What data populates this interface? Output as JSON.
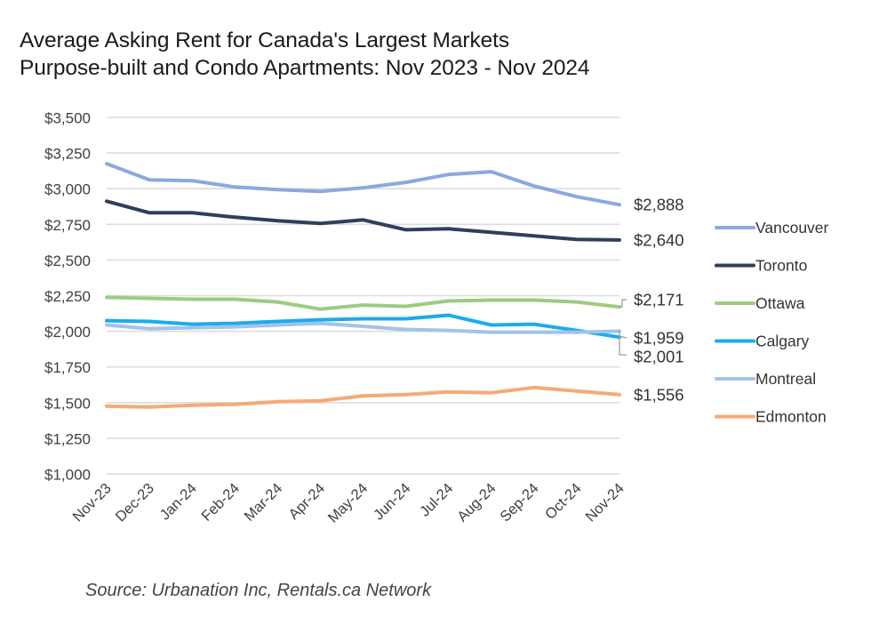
{
  "chart_data": {
    "type": "line",
    "title": "Average Asking Rent for Canada's Largest Markets",
    "subtitle": "Purpose-built and Condo Apartments: Nov 2023 - Nov 2024",
    "xlabel": "",
    "ylabel": "",
    "ylim": [
      1000,
      3500
    ],
    "y_ticks": [
      1000,
      1250,
      1500,
      1750,
      2000,
      2250,
      2500,
      2750,
      3000,
      3250,
      3500
    ],
    "y_tick_labels": [
      "$1,000",
      "$1,250",
      "$1,500",
      "$1,750",
      "$2,000",
      "$2,250",
      "$2,500",
      "$2,750",
      "$3,000",
      "$3,250",
      "$3,500"
    ],
    "grid": true,
    "legend_position": "right",
    "categories": [
      "Nov-23",
      "Dec-23",
      "Jan-24",
      "Feb-24",
      "Mar-24",
      "Apr-24",
      "May-24",
      "Jun-24",
      "Jul-24",
      "Aug-24",
      "Sep-24",
      "Oct-24",
      "Nov-24"
    ],
    "series": [
      {
        "name": "Vancouver",
        "color": "#8ba8e0",
        "end_label": "$2,888",
        "values": [
          3175,
          3062,
          3056,
          3012,
          2994,
          2981,
          3006,
          3044,
          3100,
          3119,
          3019,
          2944,
          2888
        ]
      },
      {
        "name": "Toronto",
        "color": "#2e3f5a",
        "end_label": "$2,640",
        "values": [
          2912,
          2831,
          2831,
          2800,
          2775,
          2756,
          2781,
          2712,
          2719,
          2694,
          2669,
          2644,
          2640
        ]
      },
      {
        "name": "Ottawa",
        "color": "#9dcb82",
        "end_label": "$2,171",
        "values": [
          2238,
          2231,
          2225,
          2225,
          2206,
          2156,
          2184,
          2175,
          2213,
          2219,
          2219,
          2206,
          2171
        ]
      },
      {
        "name": "Calgary",
        "color": "#1aacec",
        "end_label": "$1,959",
        "values": [
          2075,
          2069,
          2050,
          2056,
          2069,
          2081,
          2088,
          2088,
          2113,
          2044,
          2050,
          2006,
          1959
        ]
      },
      {
        "name": "Montreal",
        "color": "#a4c2e8",
        "end_label": "$2,001",
        "values": [
          2044,
          2019,
          2025,
          2031,
          2044,
          2056,
          2035,
          2013,
          2006,
          1994,
          1994,
          1994,
          2001
        ]
      },
      {
        "name": "Edmonton",
        "color": "#f4aa78",
        "end_label": "$1,556",
        "values": [
          1475,
          1469,
          1481,
          1488,
          1506,
          1513,
          1547,
          1556,
          1575,
          1569,
          1606,
          1581,
          1556
        ]
      }
    ],
    "source": "Source: Urbanation Inc, Rentals.ca Network"
  }
}
